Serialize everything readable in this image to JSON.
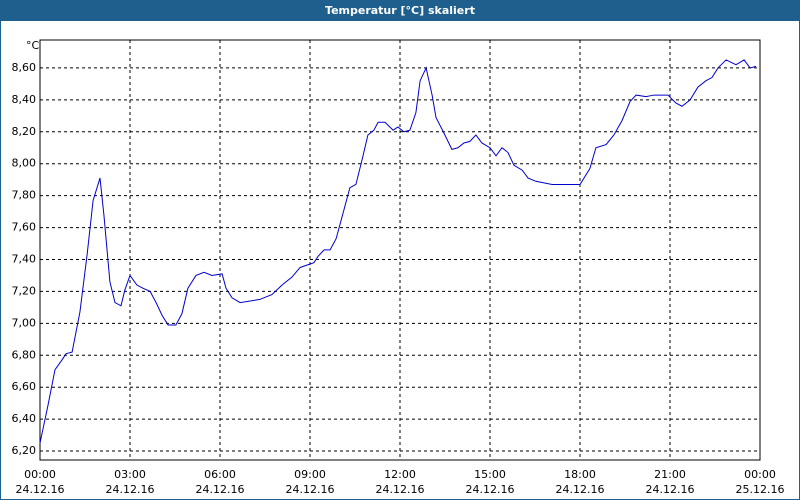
{
  "chart_data": {
    "type": "line",
    "title": "Temperatur [°C] skaliert",
    "y_unit": "°C",
    "x": [
      0,
      0.27,
      0.5,
      0.73,
      0.87,
      1.07,
      1.33,
      1.57,
      1.77,
      2,
      2.13,
      2.33,
      2.5,
      2.7,
      2.83,
      3,
      3.23,
      3.43,
      3.67,
      3.87,
      4.07,
      4.27,
      4.53,
      4.73,
      4.93,
      5.2,
      5.47,
      5.73,
      6.07,
      6.2,
      6.4,
      6.67,
      7.33,
      7.73,
      8.07,
      8.4,
      8.67,
      9.13,
      9.27,
      9.47,
      9.67,
      9.87,
      10.13,
      10.33,
      10.53,
      10.73,
      10.93,
      11.13,
      11.27,
      11.5,
      11.77,
      11.93,
      12.13,
      12.33,
      12.53,
      12.67,
      12.87,
      13.07,
      13.2,
      13.47,
      13.73,
      13.93,
      14.13,
      14.33,
      14.53,
      14.73,
      15,
      15.2,
      15.4,
      15.6,
      15.8,
      16.07,
      16.27,
      16.53,
      16.8,
      17.07,
      17.53,
      18,
      18.33,
      18.53,
      18.87,
      19.13,
      19.4,
      19.67,
      19.87,
      20.2,
      20.47,
      20.93,
      21.2,
      21.4,
      21.67,
      21.93,
      22.2,
      22.4,
      22.6,
      22.87,
      23.2,
      23.47,
      23.67,
      23.87
    ],
    "series": [
      {
        "name": "Temperatur",
        "color": "#0000cc",
        "values": [
          6.25,
          6.49,
          6.71,
          6.77,
          6.81,
          6.82,
          7.07,
          7.43,
          7.77,
          7.91,
          7.68,
          7.26,
          7.13,
          7.11,
          7.21,
          7.3,
          7.24,
          7.22,
          7.2,
          7.13,
          7.05,
          6.99,
          6.99,
          7.06,
          7.22,
          7.3,
          7.32,
          7.3,
          7.31,
          7.22,
          7.16,
          7.13,
          7.15,
          7.18,
          7.24,
          7.29,
          7.35,
          7.38,
          7.42,
          7.46,
          7.46,
          7.53,
          7.71,
          7.85,
          7.87,
          8.02,
          8.18,
          8.21,
          8.26,
          8.26,
          8.21,
          8.23,
          8.2,
          8.21,
          8.32,
          8.52,
          8.6,
          8.43,
          8.29,
          8.19,
          8.09,
          8.1,
          8.13,
          8.14,
          8.18,
          8.13,
          8.1,
          8.05,
          8.1,
          8.07,
          7.99,
          7.96,
          7.91,
          7.89,
          7.88,
          7.87,
          7.87,
          7.87,
          7.97,
          8.1,
          8.12,
          8.18,
          8.27,
          8.39,
          8.43,
          8.42,
          8.43,
          8.43,
          8.38,
          8.36,
          8.4,
          8.48,
          8.52,
          8.54,
          8.6,
          8.65,
          8.62,
          8.65,
          8.6,
          8.61
        ]
      }
    ],
    "xlim": [
      0,
      24
    ],
    "xticks": [
      {
        "value": 0,
        "label": "00:00",
        "date": "24.12.16"
      },
      {
        "value": 3,
        "label": "03:00",
        "date": "24.12.16"
      },
      {
        "value": 6,
        "label": "06:00",
        "date": "24.12.16"
      },
      {
        "value": 9,
        "label": "09:00",
        "date": "24.12.16"
      },
      {
        "value": 12,
        "label": "12:00",
        "date": "24.12.16"
      },
      {
        "value": 15,
        "label": "15:00",
        "date": "24.12.16"
      },
      {
        "value": 18,
        "label": "18:00",
        "date": "24.12.16"
      },
      {
        "value": 21,
        "label": "21:00",
        "date": "24.12.16"
      },
      {
        "value": 24,
        "label": "00:00",
        "date": "25.12.16"
      }
    ],
    "ylim": [
      6.144,
      8.775
    ],
    "yticks": [
      {
        "value": 6.2,
        "label": "6,20"
      },
      {
        "value": 6.4,
        "label": "6,40"
      },
      {
        "value": 6.6,
        "label": "6,60"
      },
      {
        "value": 6.8,
        "label": "6,80"
      },
      {
        "value": 7.0,
        "label": "7,00"
      },
      {
        "value": 7.2,
        "label": "7,20"
      },
      {
        "value": 7.4,
        "label": "7,40"
      },
      {
        "value": 7.6,
        "label": "7,60"
      },
      {
        "value": 7.8,
        "label": "7,80"
      },
      {
        "value": 8.0,
        "label": "8,00"
      },
      {
        "value": 8.2,
        "label": "8,20"
      },
      {
        "value": 8.4,
        "label": "8,40"
      },
      {
        "value": 8.6,
        "label": "8,60"
      }
    ],
    "grid": true
  }
}
